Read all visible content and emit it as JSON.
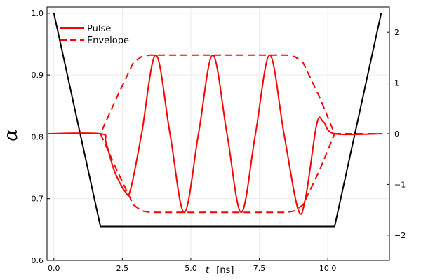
{
  "chart_data": {
    "type": "line",
    "title": "",
    "xlabel_var": "t",
    "xlabel_unit": "[ns]",
    "ylabel_left": "α",
    "ylabel_right": "",
    "xlim": [
      -0.25,
      12.25
    ],
    "ylim_left": [
      0.6,
      1.01
    ],
    "ylim_right": [
      -2.5,
      2.5
    ],
    "x_ticks": [
      {
        "value": 0.0,
        "label": "0.0"
      },
      {
        "value": 2.5,
        "label": "2.5"
      },
      {
        "value": 5.0,
        "label": "5.0"
      },
      {
        "value": 7.5,
        "label": "7.5"
      },
      {
        "value": 10.0,
        "label": "10.0"
      }
    ],
    "y_ticks_left": [
      {
        "value": 0.6,
        "label": "0.6"
      },
      {
        "value": 0.7,
        "label": "0.7"
      },
      {
        "value": 0.8,
        "label": "0.8"
      },
      {
        "value": 0.9,
        "label": "0.9"
      },
      {
        "value": 1.0,
        "label": "1.0"
      }
    ],
    "y_ticks_right": [
      {
        "value": -2,
        "label": "−2"
      },
      {
        "value": -1,
        "label": "−1"
      },
      {
        "value": 0,
        "label": "0"
      },
      {
        "value": 1,
        "label": "1"
      },
      {
        "value": 2,
        "label": "2"
      }
    ],
    "grid": true,
    "legend_position": "top-left",
    "legend": [
      {
        "name": "Pulse",
        "style": "solid",
        "color": "#ff0000"
      },
      {
        "name": "Envelope",
        "style": "dashed",
        "color": "#ff0000"
      }
    ],
    "series": [
      {
        "name": "alpha",
        "axis": "left",
        "color": "#000000",
        "x": [
          0.0,
          1.7,
          10.25,
          11.95
        ],
        "y": [
          1.0,
          0.655,
          0.655,
          1.0
        ]
      },
      {
        "name": "Pulse",
        "axis": "right",
        "color": "#ff0000",
        "style": "solid",
        "x": [
          -0.2,
          1.7,
          1.9,
          2.2,
          2.6,
          2.8,
          3.2,
          3.72,
          4.24,
          4.76,
          5.28,
          5.8,
          6.32,
          6.84,
          7.36,
          7.88,
          8.4,
          8.92,
          9.2,
          9.6,
          9.85,
          10.25,
          12.0
        ],
        "y": [
          0.0,
          0.0,
          -0.17,
          -0.72,
          -1.14,
          -1.1,
          -0.01,
          1.55,
          0.0,
          -1.55,
          0.0,
          1.55,
          0.0,
          -1.55,
          0.0,
          1.55,
          0.0,
          -1.5,
          -1.23,
          0.2,
          0.23,
          0.0,
          0.0
        ]
      },
      {
        "name": "Envelope",
        "axis": "right",
        "color": "#ff0000",
        "style": "dashed",
        "x": [
          -0.2,
          1.7,
          2.3,
          2.9,
          3.2,
          3.5,
          8.5,
          8.8,
          9.1,
          9.7,
          10.25,
          12.0
        ],
        "y": [
          0.0,
          0.0,
          0.72,
          1.4,
          1.52,
          1.55,
          1.55,
          1.52,
          1.4,
          0.72,
          0.0,
          0.0
        ]
      },
      {
        "name": "Envelope-lower",
        "axis": "right",
        "color": "#ff0000",
        "style": "dashed",
        "x": [
          1.7,
          2.3,
          2.9,
          3.2,
          3.5,
          8.5,
          8.8,
          9.1,
          9.7,
          10.25
        ],
        "y": [
          0.0,
          -0.72,
          -1.4,
          -1.52,
          -1.55,
          -1.55,
          -1.52,
          -1.4,
          -0.72,
          0.0
        ]
      }
    ]
  }
}
